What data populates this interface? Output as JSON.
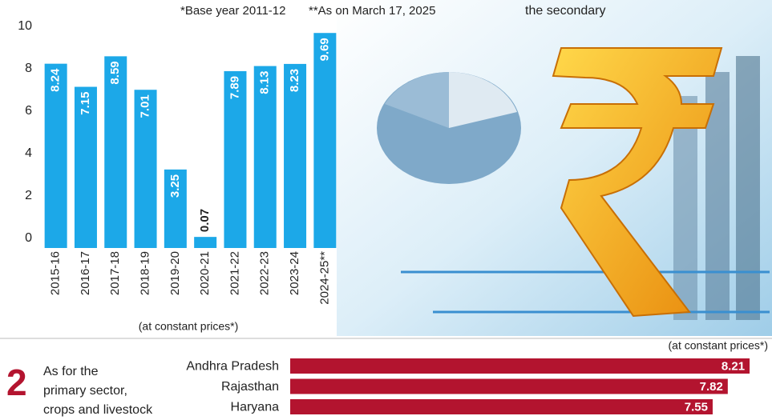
{
  "headline_fragment": "the secondary",
  "section": {
    "number": "2",
    "lines": [
      "As for the",
      "primary sector,",
      "crops and livestock"
    ]
  },
  "chart_data": [
    {
      "type": "bar",
      "annotations": [
        "*Base year 2011-12",
        "**As on March 17, 2025"
      ],
      "categories": [
        "2015-16",
        "2016-17",
        "2017-18",
        "2018-19",
        "2019-20",
        "2020-21",
        "2021-22",
        "2022-23",
        "2023-24",
        "2024-25**"
      ],
      "values": [
        8.24,
        7.15,
        8.59,
        7.01,
        3.25,
        0.07,
        7.89,
        8.13,
        8.23,
        9.69
      ],
      "x_label": "(at constant prices*)",
      "color": "#1ca8e8",
      "ylim": [
        0,
        10
      ],
      "yticks": [
        0,
        2,
        4,
        6,
        8,
        10
      ]
    },
    {
      "type": "bar",
      "horizontal": true,
      "note": "(at constant prices*)",
      "categories": [
        "Andhra Pradesh",
        "Rajasthan",
        "Haryana"
      ],
      "values": [
        8.21,
        7.82,
        7.55
      ],
      "color": "#b3142f"
    }
  ]
}
